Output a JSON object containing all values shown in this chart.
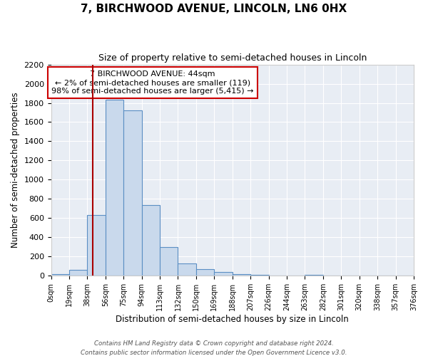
{
  "title": "7, BIRCHWOOD AVENUE, LINCOLN, LN6 0HX",
  "subtitle": "Size of property relative to semi-detached houses in Lincoln",
  "xlabel": "Distribution of semi-detached houses by size in Lincoln",
  "ylabel": "Number of semi-detached properties",
  "num_bins": 20,
  "bin_labels": [
    "0sqm",
    "19sqm",
    "38sqm",
    "56sqm",
    "75sqm",
    "94sqm",
    "113sqm",
    "132sqm",
    "150sqm",
    "169sqm",
    "188sqm",
    "207sqm",
    "226sqm",
    "244sqm",
    "263sqm",
    "282sqm",
    "301sqm",
    "320sqm",
    "338sqm",
    "357sqm",
    "376sqm"
  ],
  "bin_heights": [
    20,
    60,
    630,
    1830,
    1720,
    740,
    300,
    130,
    70,
    40,
    20,
    10,
    0,
    0,
    10,
    0,
    0,
    5,
    0,
    5
  ],
  "bar_facecolor": "#c9d9ec",
  "bar_edgecolor": "#5b8fc4",
  "grid_color": "#ffffff",
  "background_color": "#e8edf4",
  "vline_bin": 2.3,
  "vline_color": "#aa0000",
  "annotation_text_line1": "7 BIRCHWOOD AVENUE: 44sqm",
  "annotation_text_line2": "← 2% of semi-detached houses are smaller (119)",
  "annotation_text_line3": "98% of semi-detached houses are larger (5,415) →",
  "annotation_box_facecolor": "#ffffff",
  "annotation_box_edgecolor": "#cc0000",
  "ylim": [
    0,
    2200
  ],
  "yticks": [
    0,
    200,
    400,
    600,
    800,
    1000,
    1200,
    1400,
    1600,
    1800,
    2000,
    2200
  ],
  "footer_line1": "Contains HM Land Registry data © Crown copyright and database right 2024.",
  "footer_line2": "Contains public sector information licensed under the Open Government Licence v3.0."
}
